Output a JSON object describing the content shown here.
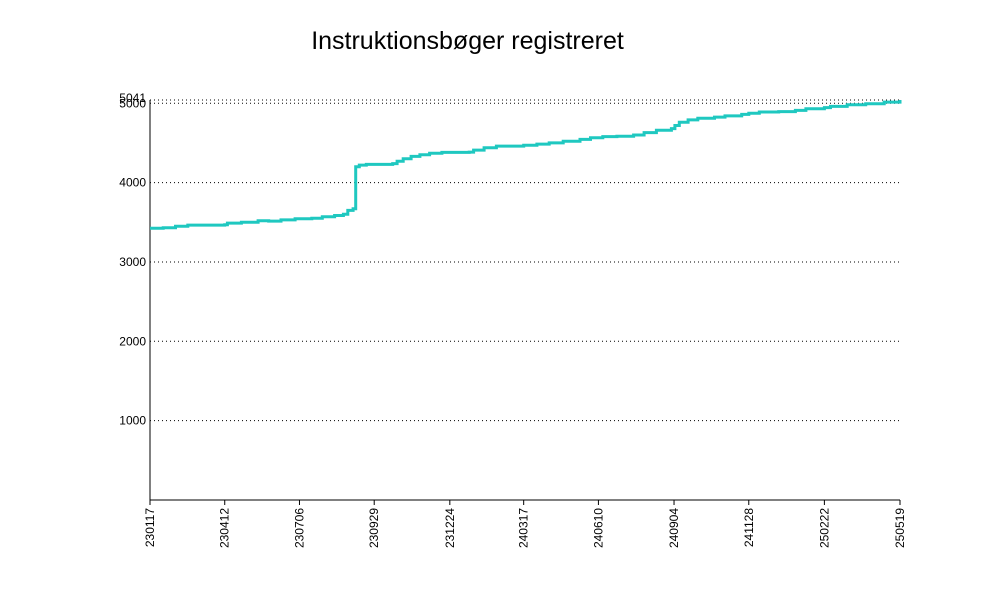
{
  "colors": {
    "series": "#1fc8c0",
    "axis": "#000000",
    "grid": "#000000"
  },
  "chart_data": {
    "type": "line",
    "title": "Instruktionsbøger registreret",
    "xlabel": "",
    "ylabel": "",
    "grid": "horizontal dotted",
    "ylim": [
      0,
      5041
    ],
    "yticks": [
      1000,
      2000,
      3000,
      4000,
      5000
    ],
    "ymax_label": "5041",
    "xlim": [
      "230117",
      "250519"
    ],
    "xticks": [
      "230117",
      "230412",
      "230706",
      "230929",
      "231224",
      "240317",
      "240610",
      "240904",
      "241128",
      "250222",
      "250519"
    ],
    "series": [
      {
        "values": [
          [
            "230117",
            3425
          ],
          [
            "230201",
            3430
          ],
          [
            "230215",
            3450
          ],
          [
            "230301",
            3465
          ],
          [
            "230412",
            3470
          ],
          [
            "230415",
            3490
          ],
          [
            "230501",
            3500
          ],
          [
            "230520",
            3520
          ],
          [
            "230601",
            3515
          ],
          [
            "230615",
            3530
          ],
          [
            "230701",
            3545
          ],
          [
            "230720",
            3550
          ],
          [
            "230801",
            3570
          ],
          [
            "230815",
            3585
          ],
          [
            "230825",
            3600
          ],
          [
            "230830",
            3650
          ],
          [
            "230905",
            3670
          ],
          [
            "230908",
            4200
          ],
          [
            "230912",
            4220
          ],
          [
            "230920",
            4230
          ],
          [
            "231020",
            4240
          ],
          [
            "231025",
            4270
          ],
          [
            "231101",
            4300
          ],
          [
            "231110",
            4330
          ],
          [
            "231120",
            4350
          ],
          [
            "231201",
            4370
          ],
          [
            "231215",
            4380
          ],
          [
            "240115",
            4385
          ],
          [
            "240120",
            4410
          ],
          [
            "240201",
            4440
          ],
          [
            "240215",
            4460
          ],
          [
            "240317",
            4470
          ],
          [
            "240401",
            4485
          ],
          [
            "240415",
            4500
          ],
          [
            "240501",
            4520
          ],
          [
            "240520",
            4545
          ],
          [
            "240601",
            4565
          ],
          [
            "240615",
            4580
          ],
          [
            "240701",
            4585
          ],
          [
            "240720",
            4600
          ],
          [
            "240801",
            4630
          ],
          [
            "240815",
            4660
          ],
          [
            "240901",
            4680
          ],
          [
            "240905",
            4720
          ],
          [
            "240910",
            4760
          ],
          [
            "240920",
            4790
          ],
          [
            "241001",
            4810
          ],
          [
            "241020",
            4825
          ],
          [
            "241101",
            4840
          ],
          [
            "241120",
            4860
          ],
          [
            "241128",
            4875
          ],
          [
            "241210",
            4890
          ],
          [
            "250101",
            4895
          ],
          [
            "250120",
            4910
          ],
          [
            "250201",
            4930
          ],
          [
            "250222",
            4945
          ],
          [
            "250301",
            4960
          ],
          [
            "250320",
            4980
          ],
          [
            "250410",
            4995
          ],
          [
            "250501",
            5015
          ],
          [
            "250519",
            5041
          ]
        ]
      }
    ]
  }
}
